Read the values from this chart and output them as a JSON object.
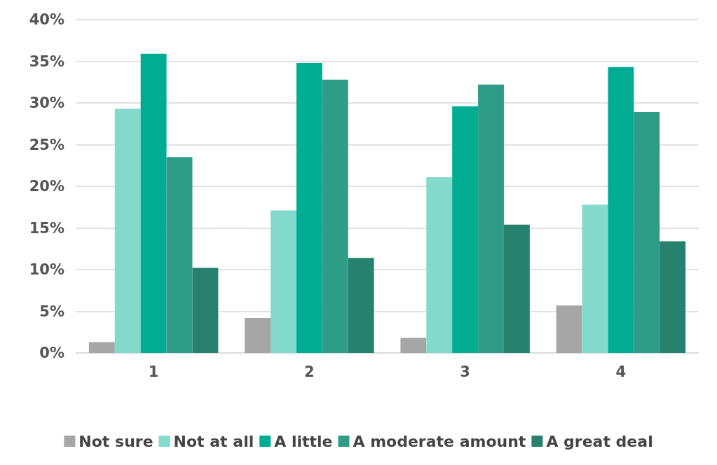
{
  "chart_data": {
    "type": "bar",
    "categories": [
      "1",
      "2",
      "3",
      "4"
    ],
    "series": [
      {
        "name": "Not sure",
        "color": "#a6a6a6",
        "values": [
          1.3,
          4.2,
          1.8,
          5.7
        ]
      },
      {
        "name": "Not at all",
        "color": "#84d9cd",
        "values": [
          29.3,
          17.1,
          21.1,
          17.8
        ]
      },
      {
        "name": "A little",
        "color": "#00ad93",
        "values": [
          35.9,
          34.8,
          29.6,
          34.3
        ]
      },
      {
        "name": "A moderate amount",
        "color": "#2e9c87",
        "values": [
          23.5,
          32.8,
          32.2,
          28.9
        ]
      },
      {
        "name": "A great deal",
        "color": "#26826f",
        "values": [
          10.2,
          11.4,
          15.4,
          13.4
        ]
      }
    ],
    "ylim": [
      0,
      40
    ],
    "yticks": [
      {
        "value": 0,
        "label": "0%"
      },
      {
        "value": 5,
        "label": "5%"
      },
      {
        "value": 10,
        "label": "10%"
      },
      {
        "value": 15,
        "label": "15%"
      },
      {
        "value": 20,
        "label": "20%"
      },
      {
        "value": 25,
        "label": "25%"
      },
      {
        "value": 30,
        "label": "30%"
      },
      {
        "value": 35,
        "label": "35%"
      },
      {
        "value": 40,
        "label": "40%"
      }
    ],
    "grid": "y",
    "legend": "bottom"
  }
}
